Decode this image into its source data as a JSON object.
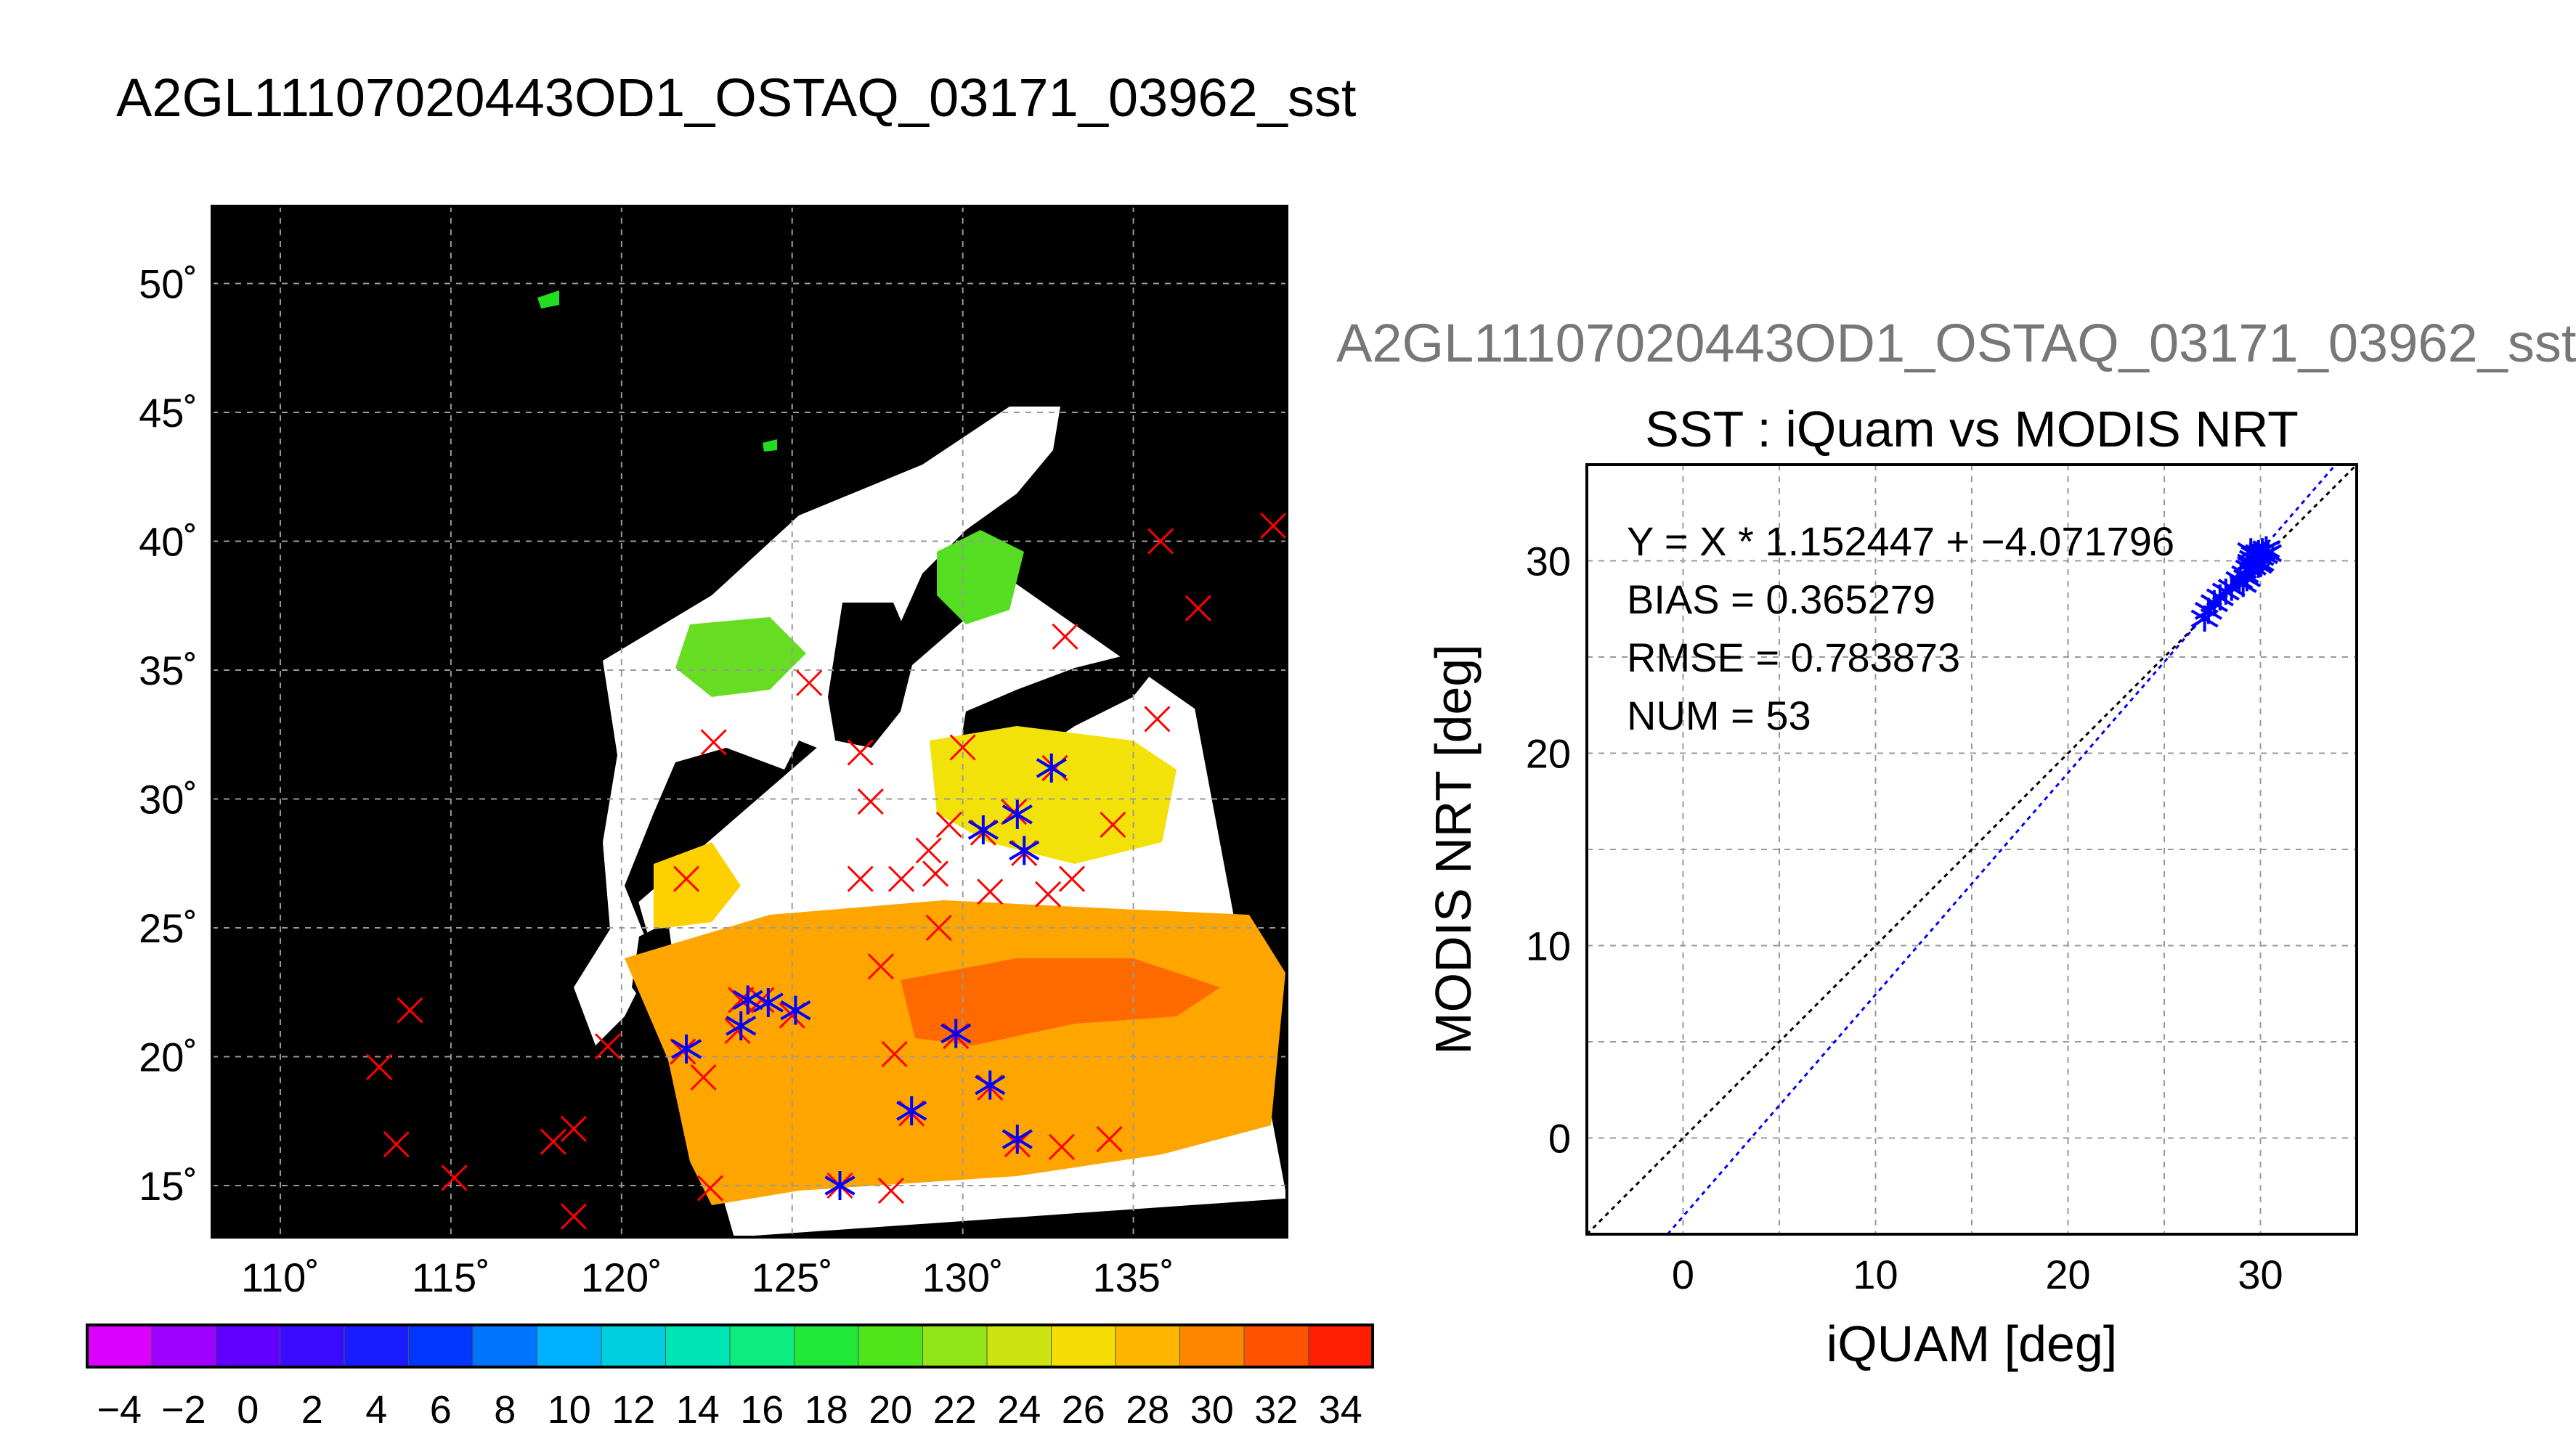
{
  "page_title": "A2GL11107020443OD1_OSTAQ_03171_03962_sst",
  "colors": {
    "map_background": "#000000",
    "land": "#ffffff",
    "marker_red": "#ff0000",
    "marker_blue": "#0000ff",
    "fit_line": "#0000ff",
    "identity_line": "#000000"
  },
  "chart_data": [
    {
      "type": "heatmap",
      "title": "",
      "xlabel": "",
      "ylabel": "",
      "xlim": [
        108,
        139.5
      ],
      "ylim": [
        13,
        53
      ],
      "x_ticks": [
        110,
        115,
        120,
        125,
        130,
        135
      ],
      "y_ticks": [
        15,
        20,
        25,
        30,
        35,
        40,
        45,
        50
      ],
      "x_tick_labels": [
        "110˚",
        "115˚",
        "120˚",
        "125˚",
        "130˚",
        "135˚"
      ],
      "y_tick_labels": [
        "15˚",
        "20˚",
        "25˚",
        "30˚",
        "35˚",
        "40˚",
        "45˚",
        "50˚"
      ],
      "grid": true,
      "swath_corners_lonlat": [
        [
          120.5,
          26
        ],
        [
          131.4,
          38.5
        ],
        [
          136.8,
          33.5
        ],
        [
          139.5,
          14.5
        ],
        [
          123.3,
          13
        ]
      ],
      "matchups_red": [
        [
          139.1,
          40.6
        ],
        [
          135.8,
          40
        ],
        [
          136.9,
          37.4
        ],
        [
          133.0,
          36.3
        ],
        [
          125.5,
          34.5
        ],
        [
          122.7,
          32.2
        ],
        [
          127.0,
          31.8
        ],
        [
          130.0,
          32.0
        ],
        [
          135.7,
          33.1
        ],
        [
          132.7,
          31.2
        ],
        [
          127.3,
          29.9
        ],
        [
          129.6,
          29.0
        ],
        [
          131.5,
          29.5
        ],
        [
          134.4,
          29.0
        ],
        [
          121.9,
          26.9
        ],
        [
          129.0,
          28.0
        ],
        [
          130.6,
          28.7
        ],
        [
          131.8,
          27.9
        ],
        [
          127.0,
          26.9
        ],
        [
          128.2,
          26.9
        ],
        [
          129.2,
          27.1
        ],
        [
          130.8,
          26.4
        ],
        [
          132.5,
          26.3
        ],
        [
          133.2,
          26.9
        ],
        [
          129.3,
          25.0
        ],
        [
          127.6,
          23.5
        ],
        [
          113.8,
          21.8
        ],
        [
          112.9,
          19.6
        ],
        [
          119.6,
          20.4
        ],
        [
          121.8,
          20.2
        ],
        [
          122.4,
          19.2
        ],
        [
          123.5,
          22.2
        ],
        [
          124.1,
          22.2
        ],
        [
          125.0,
          21.6
        ],
        [
          123.4,
          21.0
        ],
        [
          128.0,
          20.1
        ],
        [
          129.8,
          20.8
        ],
        [
          113.4,
          16.6
        ],
        [
          115.1,
          15.3
        ],
        [
          118.0,
          16.7
        ],
        [
          118.6,
          17.2
        ],
        [
          128.5,
          17.8
        ],
        [
          130.8,
          18.8
        ],
        [
          131.6,
          16.6
        ],
        [
          132.9,
          16.5
        ],
        [
          134.3,
          16.8
        ],
        [
          126.4,
          15.0
        ],
        [
          127.9,
          14.8
        ],
        [
          118.6,
          13.8
        ],
        [
          122.6,
          14.9
        ]
      ],
      "matchups_blue": [
        [
          132.6,
          31.2
        ],
        [
          123.7,
          22.2
        ],
        [
          124.3,
          22.1
        ],
        [
          125.1,
          21.8
        ],
        [
          123.5,
          21.2
        ],
        [
          121.9,
          20.3
        ],
        [
          128.5,
          17.9
        ],
        [
          130.8,
          18.9
        ],
        [
          131.6,
          16.8
        ],
        [
          126.4,
          15.0
        ],
        [
          129.8,
          20.9
        ],
        [
          131.8,
          28.0
        ],
        [
          130.6,
          28.8
        ],
        [
          131.6,
          29.4
        ]
      ]
    },
    {
      "type": "scatter",
      "title": "SST : iQuam vs MODIS NRT",
      "subtitle": "A2GL11107020443OD1_OSTAQ_03171_03962_sst",
      "xlabel": "iQUAM [deg]",
      "ylabel": "MODIS NRT [deg]",
      "xlim": [
        -5,
        35
      ],
      "ylim": [
        -5,
        35
      ],
      "x_ticks": [
        0,
        10,
        20,
        30
      ],
      "y_ticks": [
        0,
        10,
        20,
        30
      ],
      "grid": true,
      "stats": [
        "Y = X * 1.152447 + −4.071796",
        "BIAS = 0.365279",
        "RMSE = 0.783873",
        "NUM = 53"
      ],
      "fit": {
        "slope": 1.152447,
        "intercept": -4.071796
      },
      "points": [
        [
          27.1,
          27.0
        ],
        [
          27.3,
          27.4
        ],
        [
          27.6,
          27.8
        ],
        [
          27.9,
          28.1
        ],
        [
          28.2,
          28.4
        ],
        [
          28.5,
          28.6
        ],
        [
          28.9,
          29.0
        ],
        [
          29.2,
          29.3
        ],
        [
          29.4,
          29.6
        ],
        [
          29.5,
          29.9
        ],
        [
          29.6,
          30.1
        ],
        [
          29.7,
          30.3
        ],
        [
          29.8,
          30.0
        ],
        [
          29.9,
          30.4
        ],
        [
          30.0,
          30.2
        ],
        [
          30.1,
          30.5
        ],
        [
          30.2,
          30.3
        ],
        [
          30.3,
          30.6
        ],
        [
          30.4,
          30.4
        ],
        [
          29.3,
          29.1
        ],
        [
          29.1,
          28.8
        ],
        [
          29.6,
          29.7
        ],
        [
          29.9,
          29.8
        ],
        [
          30.0,
          29.9
        ],
        [
          29.5,
          30.5
        ]
      ]
    },
    {
      "type": "colorbar",
      "min": -5,
      "max": 35,
      "tick_labels": [
        "−4",
        "−2",
        "0",
        "2",
        "4",
        "6",
        "8",
        "10",
        "12",
        "14",
        "16",
        "18",
        "20",
        "22",
        "24",
        "26",
        "28",
        "30",
        "32",
        "34"
      ],
      "tick_values": [
        -4,
        -2,
        0,
        2,
        4,
        6,
        8,
        10,
        12,
        14,
        16,
        18,
        20,
        22,
        24,
        26,
        28,
        30,
        32,
        34
      ]
    }
  ]
}
